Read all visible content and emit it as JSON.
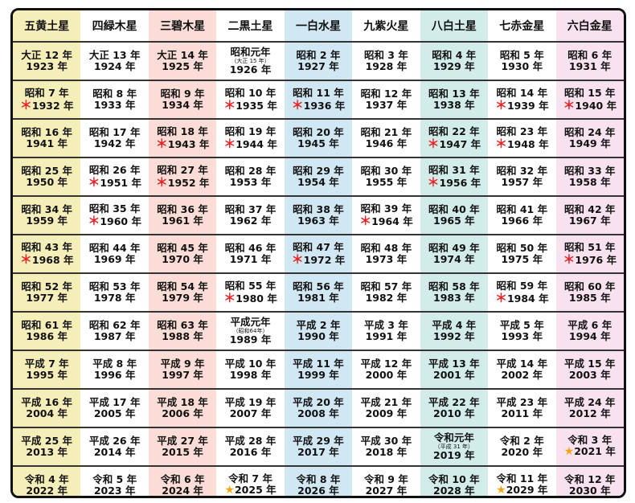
{
  "header": [
    "五黄土星",
    "四緑木星",
    "三碧木星",
    "二黒土星",
    "一白水星",
    "九紫火星",
    "八白土星",
    "七赤金星",
    "六白金星"
  ],
  "colors": {
    "col1": "#f6eeb9",
    "col3": "#fcdcd6",
    "col5": "#d1e8f4",
    "col7": "#d2ecea",
    "col9": "#f9e2ef",
    "asterisk": "#e8262a",
    "star": "#f2a516"
  },
  "rows": [
    [
      [
        "大正 12 年",
        "1923 年",
        "",
        ""
      ],
      [
        "大正 13 年",
        "1924 年",
        "",
        ""
      ],
      [
        "大正 14 年",
        "1925 年",
        "",
        ""
      ],
      [
        "昭和元年",
        "1926 年",
        "",
        "（大正 15 年）"
      ],
      [
        "昭和 2 年",
        "1927 年",
        "",
        ""
      ],
      [
        "昭和 3 年",
        "1928 年",
        "",
        ""
      ],
      [
        "昭和 4 年",
        "1929 年",
        "",
        ""
      ],
      [
        "昭和 5 年",
        "1930 年",
        "",
        ""
      ],
      [
        "昭和 6 年",
        "1931 年",
        "",
        ""
      ]
    ],
    [
      [
        "昭和 7 年",
        "1932 年",
        "＊",
        ""
      ],
      [
        "昭和 8 年",
        "1933 年",
        "",
        ""
      ],
      [
        "昭和 9 年",
        "1934 年",
        "",
        ""
      ],
      [
        "昭和 10 年",
        "1935 年",
        "＊",
        ""
      ],
      [
        "昭和 11 年",
        "1936 年",
        "＊",
        ""
      ],
      [
        "昭和 12 年",
        "1937 年",
        "",
        ""
      ],
      [
        "昭和 13 年",
        "1938 年",
        "",
        ""
      ],
      [
        "昭和 14 年",
        "1939 年",
        "＊",
        ""
      ],
      [
        "昭和 15 年",
        "1940 年",
        "＊",
        ""
      ]
    ],
    [
      [
        "昭和 16 年",
        "1941 年",
        "",
        ""
      ],
      [
        "昭和 17 年",
        "1942 年",
        "",
        ""
      ],
      [
        "昭和 18 年",
        "1943 年",
        "＊",
        ""
      ],
      [
        "昭和 19 年",
        "1944 年",
        "＊",
        ""
      ],
      [
        "昭和 20 年",
        "1945 年",
        "",
        ""
      ],
      [
        "昭和 21 年",
        "1946 年",
        "",
        ""
      ],
      [
        "昭和 22 年",
        "1947 年",
        "＊",
        ""
      ],
      [
        "昭和 23 年",
        "1948 年",
        "＊",
        ""
      ],
      [
        "昭和 24 年",
        "1949 年",
        "",
        ""
      ]
    ],
    [
      [
        "昭和 25 年",
        "1950 年",
        "",
        ""
      ],
      [
        "昭和 26 年",
        "1951 年",
        "＊",
        ""
      ],
      [
        "昭和 27 年",
        "1952 年",
        "＊",
        ""
      ],
      [
        "昭和 28 年",
        "1953 年",
        "",
        ""
      ],
      [
        "昭和 29 年",
        "1954 年",
        "",
        ""
      ],
      [
        "昭和 30 年",
        "1955 年",
        "",
        ""
      ],
      [
        "昭和 31 年",
        "1956 年",
        "＊",
        ""
      ],
      [
        "昭和 32 年",
        "1957 年",
        "",
        ""
      ],
      [
        "昭和 33 年",
        "1958 年",
        "",
        ""
      ]
    ],
    [
      [
        "昭和 34 年",
        "1959 年",
        "",
        ""
      ],
      [
        "昭和 35 年",
        "1960 年",
        "＊",
        ""
      ],
      [
        "昭和 36 年",
        "1961 年",
        "",
        ""
      ],
      [
        "昭和 37 年",
        "1962 年",
        "",
        ""
      ],
      [
        "昭和 38 年",
        "1963 年",
        "",
        ""
      ],
      [
        "昭和 39 年",
        "1964 年",
        "＊",
        ""
      ],
      [
        "昭和 40 年",
        "1965 年",
        "",
        ""
      ],
      [
        "昭和 41 年",
        "1966 年",
        "",
        ""
      ],
      [
        "昭和 42 年",
        "1967 年",
        "",
        ""
      ]
    ],
    [
      [
        "昭和 43 年",
        "1968 年",
        "＊",
        ""
      ],
      [
        "昭和 44 年",
        "1969 年",
        "",
        ""
      ],
      [
        "昭和 45 年",
        "1970 年",
        "",
        ""
      ],
      [
        "昭和 46 年",
        "1971 年",
        "",
        ""
      ],
      [
        "昭和 47 年",
        "1972 年",
        "＊",
        ""
      ],
      [
        "昭和 48 年",
        "1973 年",
        "",
        ""
      ],
      [
        "昭和 49 年",
        "1974 年",
        "",
        ""
      ],
      [
        "昭和 50 年",
        "1975 年",
        "",
        ""
      ],
      [
        "昭和 51 年",
        "1976 年",
        "＊",
        ""
      ]
    ],
    [
      [
        "昭和 52 年",
        "1977 年",
        "",
        ""
      ],
      [
        "昭和 53 年",
        "1978 年",
        "",
        ""
      ],
      [
        "昭和 54 年",
        "1979 年",
        "",
        ""
      ],
      [
        "昭和 55 年",
        "1980 年",
        "＊",
        ""
      ],
      [
        "昭和 56 年",
        "1981 年",
        "",
        ""
      ],
      [
        "昭和 57 年",
        "1982 年",
        "",
        ""
      ],
      [
        "昭和 58 年",
        "1983 年",
        "",
        ""
      ],
      [
        "昭和 59 年",
        "1984 年",
        "＊",
        ""
      ],
      [
        "昭和 60 年",
        "1985 年",
        "",
        ""
      ]
    ],
    [
      [
        "昭和 61 年",
        "1986 年",
        "",
        ""
      ],
      [
        "昭和 62 年",
        "1987 年",
        "",
        ""
      ],
      [
        "昭和 63 年",
        "1988 年",
        "",
        ""
      ],
      [
        "平成元年",
        "1989 年",
        "",
        "（昭和64年）"
      ],
      [
        "平成 2 年",
        "1990 年",
        "",
        ""
      ],
      [
        "平成 3 年",
        "1991 年",
        "",
        ""
      ],
      [
        "平成 4 年",
        "1992 年",
        "",
        ""
      ],
      [
        "平成 5 年",
        "1993 年",
        "",
        ""
      ],
      [
        "平成 6 年",
        "1994 年",
        "",
        ""
      ]
    ],
    [
      [
        "平成 7 年",
        "1995 年",
        "",
        ""
      ],
      [
        "平成 8 年",
        "1996 年",
        "",
        ""
      ],
      [
        "平成 9 年",
        "1997 年",
        "",
        ""
      ],
      [
        "平成 10 年",
        "1998 年",
        "",
        ""
      ],
      [
        "平成 11 年",
        "1999 年",
        "",
        ""
      ],
      [
        "平成 12 年",
        "2000 年",
        "",
        ""
      ],
      [
        "平成 13 年",
        "2001 年",
        "",
        ""
      ],
      [
        "平成 14 年",
        "2002 年",
        "",
        ""
      ],
      [
        "平成 15 年",
        "2003 年",
        "",
        ""
      ]
    ],
    [
      [
        "平成 16 年",
        "2004 年",
        "",
        ""
      ],
      [
        "平成 17 年",
        "2005 年",
        "",
        ""
      ],
      [
        "平成 18 年",
        "2006 年",
        "",
        ""
      ],
      [
        "平成 19 年",
        "2007 年",
        "",
        ""
      ],
      [
        "平成 20 年",
        "2008 年",
        "",
        ""
      ],
      [
        "平成 21 年",
        "2009 年",
        "",
        ""
      ],
      [
        "平成 22 年",
        "2010 年",
        "",
        ""
      ],
      [
        "平成 23 年",
        "2011 年",
        "",
        ""
      ],
      [
        "平成 24 年",
        "2012 年",
        "",
        ""
      ]
    ],
    [
      [
        "平成 25 年",
        "2013 年",
        "",
        ""
      ],
      [
        "平成 26 年",
        "2014 年",
        "",
        ""
      ],
      [
        "平成 27 年",
        "2015 年",
        "",
        ""
      ],
      [
        "平成 28 年",
        "2016 年",
        "",
        ""
      ],
      [
        "平成 29 年",
        "2017 年",
        "",
        ""
      ],
      [
        "平成 30 年",
        "2018 年",
        "",
        ""
      ],
      [
        "令和元年",
        "2019 年",
        "",
        "（平成 31 年）"
      ],
      [
        "令和 2 年",
        "2020 年",
        "",
        ""
      ],
      [
        "令和 3 年",
        "2021 年",
        "★",
        ""
      ]
    ],
    [
      [
        "令和 4 年",
        "2022 年",
        "",
        ""
      ],
      [
        "令和 5 年",
        "2023 年",
        "",
        ""
      ],
      [
        "令和 6 年",
        "2024 年",
        "",
        ""
      ],
      [
        "令和 7 年",
        "2025 年",
        "★",
        ""
      ],
      [
        "令和 8 年",
        "2026 年",
        "",
        ""
      ],
      [
        "令和 9 年",
        "2027 年",
        "",
        ""
      ],
      [
        "令和 10 年",
        "2028 年",
        "",
        ""
      ],
      [
        "令和 11 年",
        "2029 年",
        "★",
        ""
      ],
      [
        "令和 12 年",
        "2030 年",
        "",
        ""
      ]
    ]
  ]
}
